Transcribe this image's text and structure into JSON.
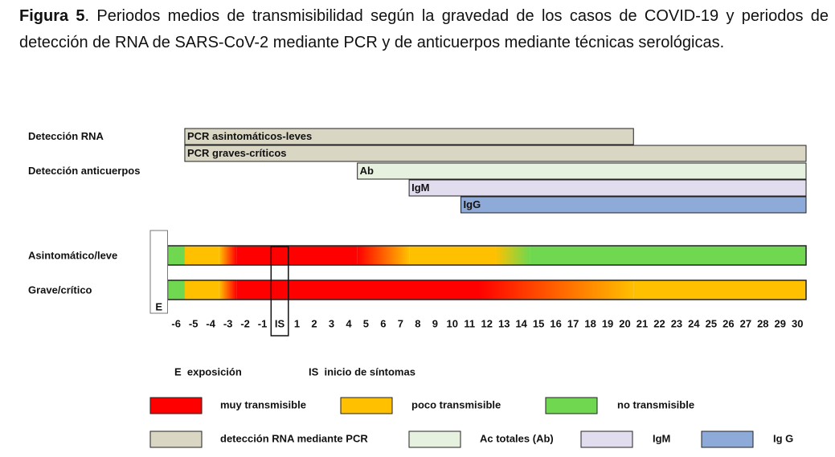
{
  "figure": {
    "label": "Figura 5",
    "caption": ". Periodos medios de transmisibilidad según la gravedad de los casos de COVID-19 y periodos de detección de RNA de SARS-CoV-2 mediante PCR y de anticuerpos mediante técnicas serológicas."
  },
  "chart_data": {
    "type": "timeline",
    "xlim": [
      -7.5,
      30.5
    ],
    "xticks": [
      -6,
      -5,
      -4,
      -3,
      -2,
      -1,
      {
        "value": 0,
        "label": "IS"
      },
      1,
      2,
      3,
      4,
      5,
      6,
      7,
      8,
      9,
      10,
      11,
      12,
      13,
      14,
      15,
      16,
      17,
      18,
      19,
      20,
      21,
      22,
      23,
      24,
      25,
      26,
      27,
      28,
      29,
      30
    ],
    "exposure": {
      "value": -7,
      "label": "E"
    },
    "groups": [
      {
        "name": "Detección RNA",
        "bars": [
          {
            "name": "PCR asintomáticos-leves",
            "start": -5.5,
            "end": 20.5,
            "color": "#d9d6c3"
          },
          {
            "name": "PCR graves-críticos",
            "start": -5.5,
            "end": 30.5,
            "color": "#d9d6c3"
          }
        ]
      },
      {
        "name": "Detección anticuerpos",
        "bars": [
          {
            "name": "Ab",
            "start": 4.5,
            "end": 30.5,
            "color": "#e6f2df"
          },
          {
            "name": "IgM",
            "start": 7.5,
            "end": 30.5,
            "color": "#e2dcef"
          },
          {
            "name": "IgG",
            "start": 10.5,
            "end": 30.5,
            "color": "#8eaad9"
          }
        ]
      }
    ],
    "rows": [
      {
        "name": "Asintomático/leve",
        "segments": [
          {
            "start": -6.5,
            "end": -5.5,
            "colors": [
              "#6fd850",
              "#6fd850"
            ]
          },
          {
            "start": -5.5,
            "end": -3.5,
            "colors": [
              "#ffc000",
              "#ffc000"
            ]
          },
          {
            "start": -3.5,
            "end": -2.5,
            "colors": [
              "#ffc000",
              "#ff0000"
            ]
          },
          {
            "start": -2.5,
            "end": 4.5,
            "colors": [
              "#ff0000",
              "#ff0000"
            ]
          },
          {
            "start": 4.5,
            "end": 7.5,
            "colors": [
              "#ff0000",
              "#ffc000"
            ]
          },
          {
            "start": 7.5,
            "end": 12.5,
            "colors": [
              "#ffc000",
              "#ffc000"
            ]
          },
          {
            "start": 12.5,
            "end": 14.5,
            "colors": [
              "#ffc000",
              "#6fd850"
            ]
          },
          {
            "start": 14.5,
            "end": 30.5,
            "colors": [
              "#6fd850",
              "#6fd850"
            ]
          }
        ]
      },
      {
        "name": "Grave/crítico",
        "segments": [
          {
            "start": -6.5,
            "end": -5.5,
            "colors": [
              "#6fd850",
              "#6fd850"
            ]
          },
          {
            "start": -5.5,
            "end": -3.5,
            "colors": [
              "#ffc000",
              "#ffc000"
            ]
          },
          {
            "start": -3.5,
            "end": -2.5,
            "colors": [
              "#ffc000",
              "#ff0000"
            ]
          },
          {
            "start": -2.5,
            "end": 11.5,
            "colors": [
              "#ff0000",
              "#ff0000"
            ]
          },
          {
            "start": 11.5,
            "end": 20.5,
            "colors": [
              "#ff0000",
              "#ffc000"
            ]
          },
          {
            "start": 20.5,
            "end": 30.5,
            "colors": [
              "#ffc000",
              "#ffc000"
            ]
          }
        ]
      }
    ],
    "notes": [
      "E  exposición",
      "IS  inicio de síntomas"
    ],
    "legend": [
      {
        "name": "muy transmisible",
        "color": "#ff0000"
      },
      {
        "name": "poco transmisible",
        "color": "#ffc000"
      },
      {
        "name": "no transmisible",
        "color": "#6fd850"
      },
      {
        "name": "detección RNA mediante PCR",
        "color": "#d9d6c3"
      },
      {
        "name": "Ac totales (Ab)",
        "color": "#e6f2df"
      },
      {
        "name": "IgM",
        "color": "#e2dcef"
      },
      {
        "name": "Ig G",
        "color": "#8eaad9"
      }
    ]
  }
}
